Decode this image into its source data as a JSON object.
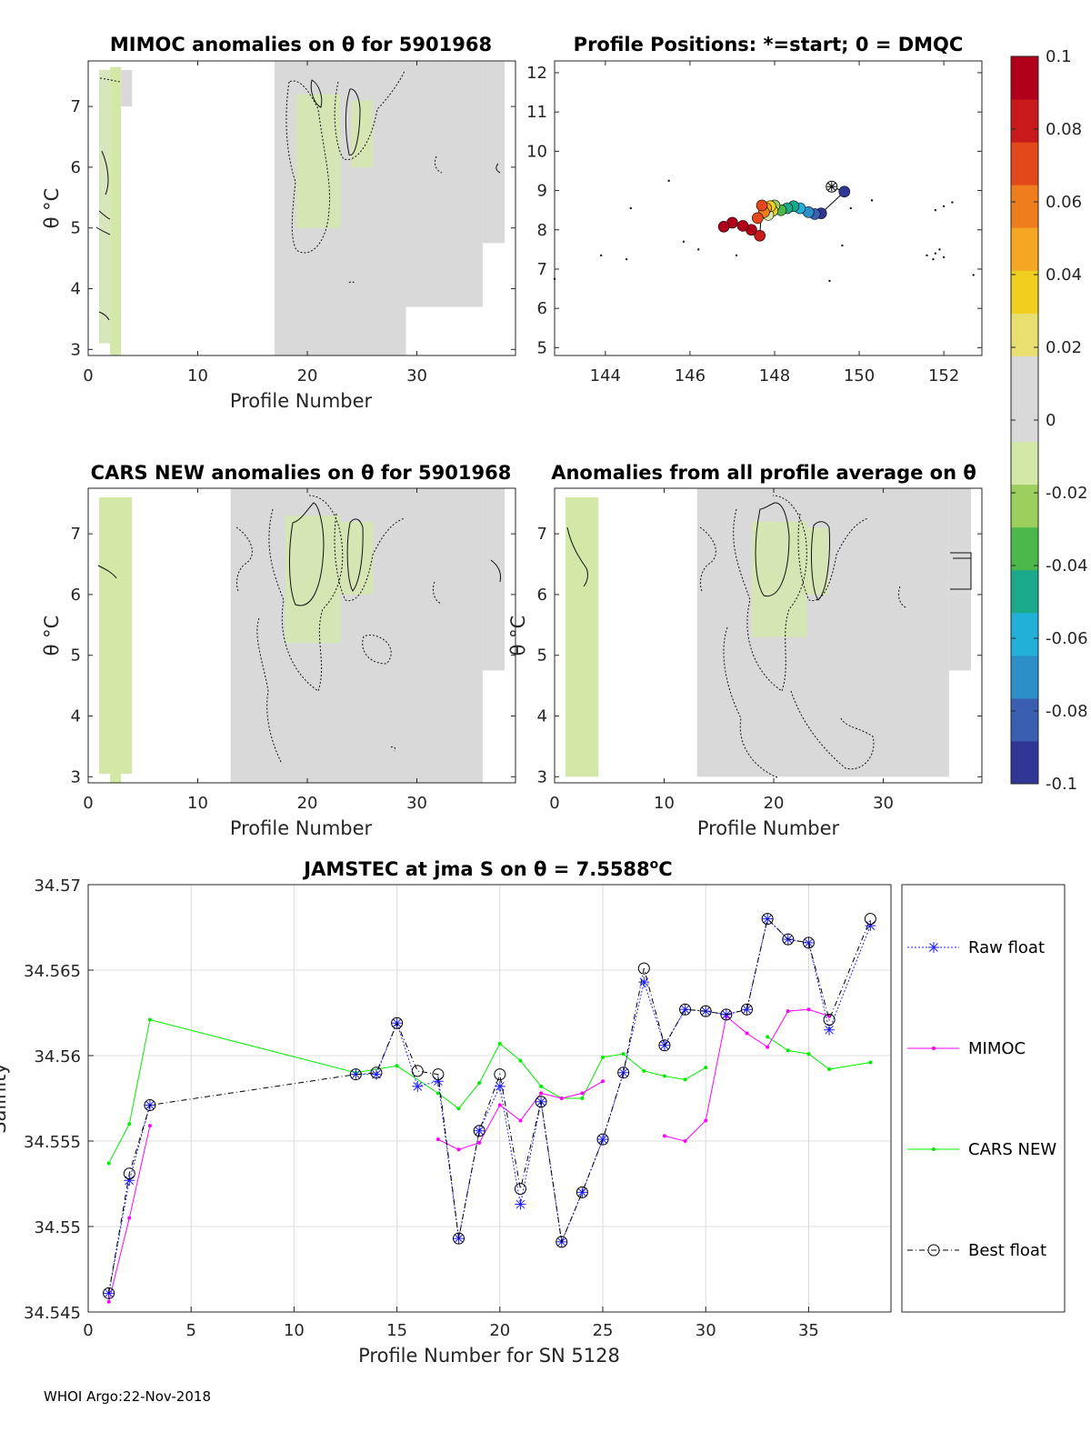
{
  "footer": "WHOI Argo:22-Nov-2018",
  "colorbar": {
    "ticks": [
      0.1,
      0.08,
      0.06,
      0.04,
      0.02,
      0,
      -0.02,
      -0.04,
      -0.06,
      -0.08,
      -0.1
    ],
    "tick_labels": [
      "0.1",
      "0.08",
      "0.06",
      "0.04",
      "0.02",
      "0",
      "-0.02",
      "-0.04",
      "-0.06",
      "-0.08",
      "-0.1"
    ],
    "range": [
      -0.1,
      0.1
    ],
    "colors": [
      "#313695",
      "#3a5fb0",
      "#2c8fc8",
      "#22b0d8",
      "#1aa98a",
      "#4cb84c",
      "#9ccf5e",
      "#d3e8a6",
      "#d9d9d9",
      "#d9d9d9",
      "#e8df70",
      "#f0cf20",
      "#f5a623",
      "#f07d1d",
      "#e2481a",
      "#c81a1a",
      "#b0001a"
    ]
  },
  "chart_data": [
    {
      "id": "mimoc",
      "type": "heatmap",
      "title": "MIMOC anomalies on θ  for 5901968",
      "xlabel": "Profile Number",
      "ylabel": "θ °C",
      "xlim": [
        0,
        39
      ],
      "ylim": [
        2.9,
        7.75
      ],
      "xticks": [
        0,
        10,
        20,
        30
      ],
      "yticks": [
        3,
        4,
        5,
        6,
        7
      ],
      "columns": [
        {
          "x0": 1,
          "x1": 2,
          "y0": 3.1,
          "y1": 7.6,
          "color": "#d7e6bd"
        },
        {
          "x0": 2,
          "x1": 3,
          "y0": 2.9,
          "y1": 7.65,
          "color": "#d3e8a6"
        },
        {
          "x0": 3,
          "x1": 4,
          "y0": 7.0,
          "y1": 7.6,
          "color": "#d9d9d9"
        },
        {
          "x0": 17,
          "x1": 29,
          "y0": 2.9,
          "y1": 7.75,
          "color": "#d9d9d9"
        },
        {
          "x0": 29,
          "x1": 36,
          "y0": 3.7,
          "y1": 7.75,
          "color": "#d9d9d9"
        },
        {
          "x0": 36,
          "x1": 38,
          "y0": 4.75,
          "y1": 7.75,
          "color": "#d9d9d9"
        }
      ],
      "green_patches": [
        {
          "x0": 19,
          "x1": 23,
          "y0": 5.0,
          "y1": 7.2
        },
        {
          "x0": 24,
          "x1": 26,
          "y0": 6.0,
          "y1": 7.1
        }
      ]
    },
    {
      "id": "positions",
      "type": "scatter",
      "title": "Profile Positions: *=start; 0 = DMQC",
      "xlim": [
        142.8,
        152.9
      ],
      "ylim": [
        4.8,
        12.3
      ],
      "xticks": [
        144,
        146,
        148,
        150,
        152
      ],
      "yticks": [
        5,
        6,
        7,
        8,
        9,
        10,
        11,
        12
      ],
      "start": {
        "x": 149.35,
        "y": 9.1
      },
      "profiles": [
        {
          "x": 149.65,
          "y": 8.97,
          "a": -0.095
        },
        {
          "x": 149.1,
          "y": 8.42,
          "a": -0.09
        },
        {
          "x": 148.95,
          "y": 8.4,
          "a": -0.085
        },
        {
          "x": 148.8,
          "y": 8.45,
          "a": -0.075
        },
        {
          "x": 148.6,
          "y": 8.55,
          "a": -0.06
        },
        {
          "x": 148.45,
          "y": 8.6,
          "a": -0.05
        },
        {
          "x": 148.3,
          "y": 8.55,
          "a": -0.045
        },
        {
          "x": 148.15,
          "y": 8.5,
          "a": -0.035
        },
        {
          "x": 148.0,
          "y": 8.62,
          "a": -0.02
        },
        {
          "x": 147.95,
          "y": 8.48,
          "a": 0.03
        },
        {
          "x": 147.85,
          "y": 8.38,
          "a": -0.01
        },
        {
          "x": 147.9,
          "y": 8.6,
          "a": 0.04
        },
        {
          "x": 147.8,
          "y": 8.55,
          "a": 0.045
        },
        {
          "x": 147.75,
          "y": 8.45,
          "a": 0.055
        },
        {
          "x": 147.6,
          "y": 8.3,
          "a": 0.065
        },
        {
          "x": 147.7,
          "y": 8.62,
          "a": 0.075
        },
        {
          "x": 147.65,
          "y": 7.85,
          "a": 0.085
        },
        {
          "x": 147.45,
          "y": 8.0,
          "a": 0.095
        },
        {
          "x": 147.25,
          "y": 8.1,
          "a": 0.1
        },
        {
          "x": 147.0,
          "y": 8.18,
          "a": 0.1
        },
        {
          "x": 146.8,
          "y": 8.08,
          "a": 0.1
        }
      ],
      "topo_dots": [
        {
          "x": 143.9,
          "y": 7.35
        },
        {
          "x": 144.6,
          "y": 8.55
        },
        {
          "x": 144.5,
          "y": 7.25
        },
        {
          "x": 145.5,
          "y": 9.25
        },
        {
          "x": 145.85,
          "y": 7.7
        },
        {
          "x": 146.2,
          "y": 7.5
        },
        {
          "x": 147.1,
          "y": 7.35
        },
        {
          "x": 149.8,
          "y": 8.55
        },
        {
          "x": 150.3,
          "y": 8.75
        },
        {
          "x": 149.6,
          "y": 7.6
        },
        {
          "x": 149.3,
          "y": 6.7
        },
        {
          "x": 142.8,
          "y": 6.75
        },
        {
          "x": 151.8,
          "y": 8.5
        },
        {
          "x": 152.0,
          "y": 8.6
        },
        {
          "x": 152.2,
          "y": 8.7
        },
        {
          "x": 151.6,
          "y": 7.35
        },
        {
          "x": 151.8,
          "y": 7.4
        },
        {
          "x": 151.9,
          "y": 7.5
        },
        {
          "x": 152.0,
          "y": 7.3
        },
        {
          "x": 151.75,
          "y": 7.25
        },
        {
          "x": 152.7,
          "y": 6.85
        }
      ]
    },
    {
      "id": "cars",
      "type": "heatmap",
      "title": "CARS NEW anomalies on θ for 5901968",
      "xlabel": "Profile Number",
      "ylabel": "θ °C",
      "xlim": [
        0,
        39
      ],
      "ylim": [
        2.9,
        7.75
      ],
      "xticks": [
        0,
        10,
        20,
        30
      ],
      "yticks": [
        3,
        4,
        5,
        6,
        7
      ],
      "columns": [
        {
          "x0": 1,
          "x1": 4,
          "y0": 3.05,
          "y1": 7.6,
          "color": "#d3e8a6"
        },
        {
          "x0": 2,
          "x1": 3,
          "y0": 2.9,
          "y1": 3.05,
          "color": "#d3e8a6"
        },
        {
          "x0": 13,
          "x1": 36,
          "y0": 2.9,
          "y1": 7.75,
          "color": "#d9d9d9"
        },
        {
          "x0": 36,
          "x1": 38,
          "y0": 4.75,
          "y1": 7.75,
          "color": "#d9d9d9"
        }
      ],
      "green_patches": [
        {
          "x0": 18,
          "x1": 23,
          "y0": 5.2,
          "y1": 7.3
        },
        {
          "x0": 23,
          "x1": 26,
          "y0": 6.0,
          "y1": 7.2
        }
      ]
    },
    {
      "id": "average",
      "type": "heatmap",
      "title": "Anomalies from all profile average on θ",
      "xlabel": "Profile Number",
      "ylabel": "θ °C",
      "xlim": [
        0,
        39
      ],
      "ylim": [
        2.9,
        7.75
      ],
      "xticks": [
        0,
        10,
        20,
        30
      ],
      "yticks": [
        3,
        4,
        5,
        6,
        7
      ],
      "columns": [
        {
          "x0": 1,
          "x1": 4,
          "y0": 3.0,
          "y1": 7.6,
          "color": "#d3e8a6"
        },
        {
          "x0": 13,
          "x1": 36,
          "y0": 3.0,
          "y1": 7.75,
          "color": "#d9d9d9"
        },
        {
          "x0": 36,
          "x1": 38,
          "y0": 4.75,
          "y1": 7.75,
          "color": "#d9d9d9"
        }
      ],
      "green_patches": [
        {
          "x0": 18,
          "x1": 23,
          "y0": 5.3,
          "y1": 7.2
        },
        {
          "x0": 23,
          "x1": 25,
          "y0": 6.0,
          "y1": 7.1
        }
      ]
    },
    {
      "id": "salinity",
      "type": "line",
      "title": "JAMSTEC at jma S on θ = 7.5588°C",
      "title_main": "JAMSTEC at jma S on θ = 7.5588",
      "title_sup": "o",
      "title_tail": "C",
      "xlabel": "Profile Number for SN 5128",
      "ylabel": "Salinity",
      "xlim": [
        0,
        39
      ],
      "ylim": [
        34.545,
        34.57
      ],
      "xticks": [
        0,
        5,
        10,
        15,
        20,
        25,
        30,
        35
      ],
      "yticks": [
        34.545,
        34.55,
        34.555,
        34.56,
        34.565,
        34.57
      ],
      "ytick_labels": [
        "34.545",
        "34.55",
        "34.555",
        "34.56",
        "34.565",
        "34.57"
      ],
      "legend": [
        "Raw float",
        "MIMOC",
        "CARS NEW",
        "Best float"
      ],
      "series": [
        {
          "name": "Raw float",
          "segments": [
            [
              [
                1,
                34.5461
              ],
              [
                2,
                34.5527
              ],
              [
                3,
                34.5571
              ]
            ],
            [
              [
                13,
                34.5589
              ],
              [
                14,
                34.5589
              ],
              [
                15,
                34.5619
              ],
              [
                16,
                34.5582
              ],
              [
                17,
                34.5585
              ],
              [
                18,
                34.5493
              ],
              [
                19,
                34.5556
              ],
              [
                20,
                34.5582
              ],
              [
                21,
                34.5513
              ],
              [
                22,
                34.5573
              ],
              [
                23,
                34.5491
              ],
              [
                24,
                34.552
              ],
              [
                25,
                34.5551
              ],
              [
                26,
                34.559
              ],
              [
                27,
                34.5643
              ],
              [
                28,
                34.5606
              ],
              [
                29,
                34.5627
              ],
              [
                30,
                34.5626
              ],
              [
                31,
                34.5624
              ],
              [
                32,
                34.5627
              ],
              [
                33,
                34.568
              ],
              [
                34,
                34.5668
              ],
              [
                35,
                34.5666
              ],
              [
                36,
                34.5615
              ],
              [
                38,
                34.5676
              ]
            ]
          ]
        },
        {
          "name": "MIMOC",
          "segments": [
            [
              [
                1,
                34.5456
              ],
              [
                2,
                34.5505
              ],
              [
                3,
                34.5559
              ]
            ],
            [
              [
                17,
                34.5551
              ],
              [
                18,
                34.5545
              ],
              [
                19,
                34.5549
              ],
              [
                20,
                34.5571
              ],
              [
                21,
                34.5562
              ],
              [
                22,
                34.5578
              ],
              [
                23,
                34.5575
              ],
              [
                24,
                34.5578
              ],
              [
                25,
                34.5585
              ]
            ],
            [
              [
                28,
                34.5553
              ],
              [
                29,
                34.555
              ],
              [
                30,
                34.5562
              ],
              [
                31,
                34.5623
              ],
              [
                32,
                34.5613
              ],
              [
                33,
                34.5605
              ],
              [
                34,
                34.5626
              ],
              [
                35,
                34.5627
              ],
              [
                36,
                34.5623
              ]
            ]
          ]
        },
        {
          "name": "CARS NEW",
          "segments": [
            [
              [
                1,
                34.5537
              ],
              [
                2,
                34.556
              ],
              [
                3,
                34.5621
              ],
              [
                13,
                34.559
              ],
              [
                15,
                34.5594
              ],
              [
                17,
                34.5578
              ],
              [
                18,
                34.5569
              ],
              [
                19,
                34.5584
              ],
              [
                20,
                34.5607
              ],
              [
                21,
                34.5597
              ],
              [
                22,
                34.5582
              ],
              [
                23,
                34.5575
              ],
              [
                24,
                34.5575
              ],
              [
                25,
                34.5599
              ],
              [
                26,
                34.5601
              ],
              [
                27,
                34.5591
              ],
              [
                28,
                34.5588
              ],
              [
                29,
                34.5586
              ],
              [
                30,
                34.5593
              ]
            ],
            [
              [
                33,
                34.5611
              ],
              [
                34,
                34.5603
              ],
              [
                35,
                34.5601
              ],
              [
                36,
                34.5592
              ],
              [
                38,
                34.5596
              ]
            ]
          ]
        },
        {
          "name": "Best float",
          "segments": [
            [
              [
                1,
                34.5461
              ],
              [
                2,
                34.5531
              ],
              [
                3,
                34.5571
              ],
              [
                13,
                34.5589
              ],
              [
                14,
                34.559
              ],
              [
                15,
                34.5619
              ],
              [
                16,
                34.5591
              ],
              [
                17,
                34.5589
              ],
              [
                18,
                34.5493
              ],
              [
                19,
                34.5556
              ],
              [
                20,
                34.5589
              ],
              [
                21,
                34.5522
              ],
              [
                22,
                34.5573
              ],
              [
                23,
                34.5491
              ],
              [
                24,
                34.552
              ],
              [
                25,
                34.5551
              ],
              [
                26,
                34.559
              ],
              [
                27,
                34.5651
              ],
              [
                28,
                34.5606
              ],
              [
                29,
                34.5627
              ],
              [
                30,
                34.5626
              ],
              [
                31,
                34.5624
              ],
              [
                32,
                34.5627
              ],
              [
                33,
                34.568
              ],
              [
                34,
                34.5668
              ],
              [
                35,
                34.5666
              ],
              [
                36,
                34.5621
              ],
              [
                38,
                34.568
              ]
            ]
          ]
        }
      ]
    }
  ],
  "colors": {
    "raw": "#1f1fff",
    "mimoc": "#ff00ff",
    "cars": "#00ee00",
    "best": "#000000",
    "contour": "#111111"
  }
}
